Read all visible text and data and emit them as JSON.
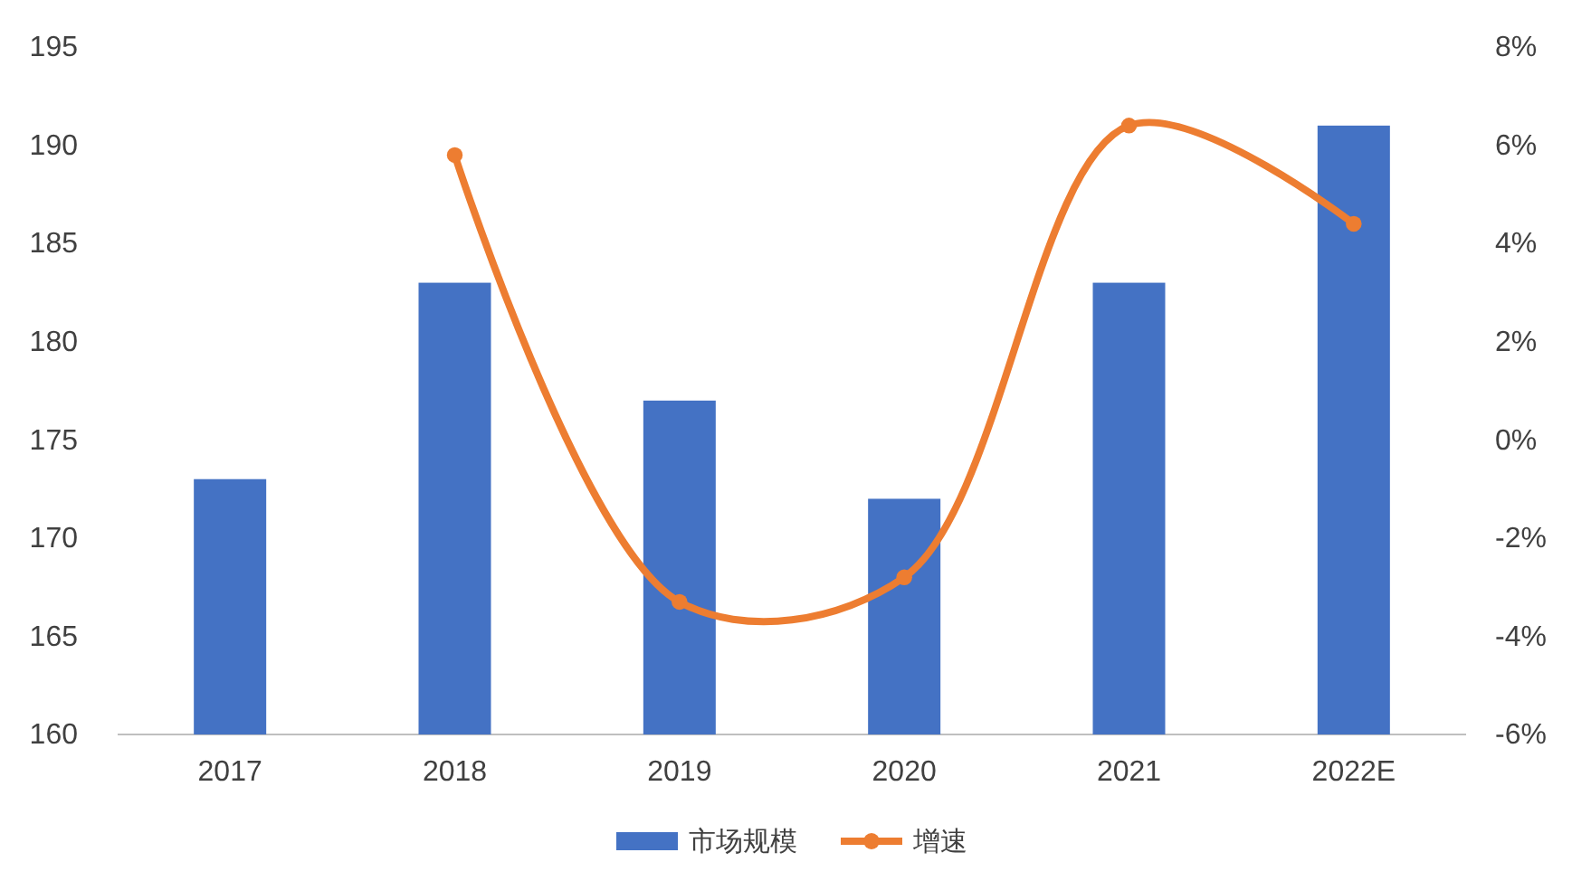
{
  "chart_data": {
    "type": "bar",
    "categories": [
      "2017",
      "2018",
      "2019",
      "2020",
      "2021",
      "2022E"
    ],
    "series": [
      {
        "name": "市场规模",
        "color": "#4472c4",
        "values": [
          173,
          183,
          177,
          172,
          183,
          191
        ]
      },
      {
        "name": "增速",
        "type": "line",
        "axis": "y2",
        "color": "#ed7d31",
        "marker": "circle",
        "values": [
          null,
          5.8,
          -3.3,
          -2.8,
          6.4,
          4.4
        ]
      }
    ],
    "ylim": [
      160,
      195
    ],
    "yticks": [
      160,
      165,
      170,
      175,
      180,
      185,
      190,
      195
    ],
    "y2lim": [
      -6,
      8
    ],
    "y2ticks": [
      {
        "value": -6,
        "label": "-6%"
      },
      {
        "value": -4,
        "label": "-4%"
      },
      {
        "value": -2,
        "label": "-2%"
      },
      {
        "value": 0,
        "label": "0%"
      },
      {
        "value": 2,
        "label": "2%"
      },
      {
        "value": 4,
        "label": "4%"
      },
      {
        "value": 6,
        "label": "6%"
      },
      {
        "value": 8,
        "label": "8%"
      }
    ],
    "grid": false,
    "legend": "bottom"
  }
}
